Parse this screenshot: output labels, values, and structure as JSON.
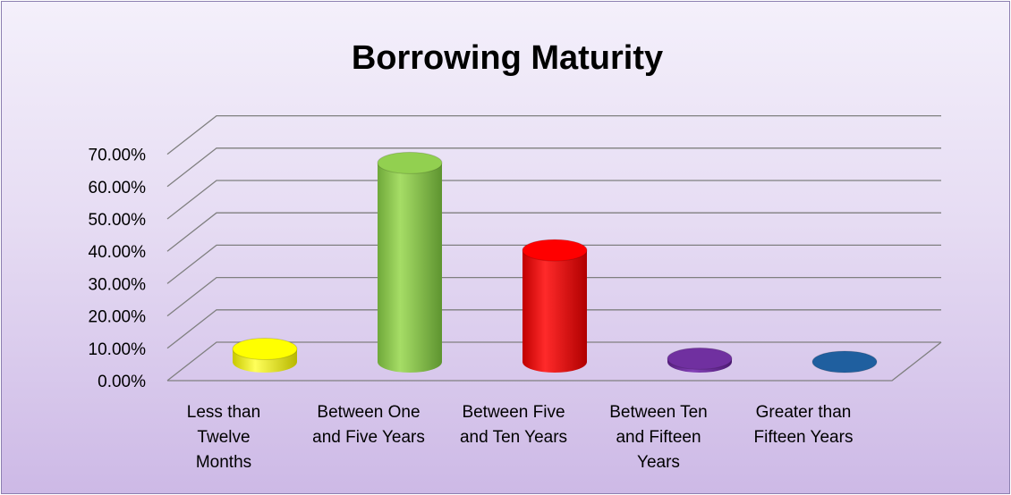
{
  "chart_data": {
    "type": "bar",
    "title": "Borrowing Maturity",
    "xlabel": "",
    "ylabel": "",
    "ylim": [
      0,
      0.7
    ],
    "yticks": [
      0,
      0.1,
      0.2,
      0.3,
      0.4,
      0.5,
      0.6,
      0.7
    ],
    "ytick_labels": [
      "0.00%",
      "10.00%",
      "20.00%",
      "30.00%",
      "40.00%",
      "50.00%",
      "60.00%",
      "70.00%"
    ],
    "categories": [
      [
        "Less than",
        "Twelve",
        "Months"
      ],
      [
        "Between One",
        "and Five Years"
      ],
      [
        "Between Five",
        "and Ten Years"
      ],
      [
        "Between Ten",
        "and Fifteen",
        "Years"
      ],
      [
        "Greater than",
        "Fifteen Years"
      ]
    ],
    "values": [
      0.04,
      0.615,
      0.345,
      0.01,
      0.0
    ],
    "colors": [
      "#ffff00",
      "#92d050",
      "#ff0000",
      "#7030a0",
      "#1f5f9f"
    ],
    "style": "3d-cylinder",
    "grid": true,
    "legend": "none"
  }
}
